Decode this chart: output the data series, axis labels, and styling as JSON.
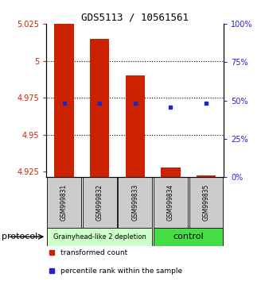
{
  "title": "GDS5113 / 10561561",
  "samples": [
    "GSM999831",
    "GSM999832",
    "GSM999833",
    "GSM999834",
    "GSM999835"
  ],
  "bar_bottoms": [
    4.9215,
    4.9215,
    4.9215,
    4.9215,
    4.9215
  ],
  "bar_tops": [
    5.025,
    5.015,
    4.99,
    4.928,
    4.9225
  ],
  "blue_y_left": [
    4.9715,
    4.9715,
    4.9715,
    4.9685,
    4.9715
  ],
  "ylim_left": [
    4.9215,
    5.025
  ],
  "ylim_right": [
    0,
    100
  ],
  "yticks_left": [
    4.925,
    4.95,
    4.975,
    5.0,
    5.025
  ],
  "yticks_right": [
    0,
    25,
    50,
    75,
    100
  ],
  "ytick_labels_left": [
    "4.925",
    "4.95",
    "4.975",
    "5",
    "5.025"
  ],
  "ytick_labels_right": [
    "0%",
    "25%",
    "50%",
    "75%",
    "100%"
  ],
  "dotted_lines": [
    4.95,
    4.975,
    5.0
  ],
  "groups": [
    {
      "label": "Grainyhead-like 2 depletion",
      "indices": [
        0,
        1,
        2
      ],
      "color": "#ccffcc",
      "fontsize": 6
    },
    {
      "label": "control",
      "indices": [
        3,
        4
      ],
      "color": "#44dd44",
      "fontsize": 8
    }
  ],
  "protocol_label": "protocol",
  "bar_color": "#cc2200",
  "blue_color": "#2222cc",
  "bar_width": 0.55,
  "legend_items": [
    {
      "color": "#cc2200",
      "label": "transformed count"
    },
    {
      "color": "#2222cc",
      "label": "percentile rank within the sample"
    }
  ],
  "background_color": "#ffffff",
  "tick_label_color_left": "#cc2200",
  "tick_label_color_right": "#2222cc"
}
